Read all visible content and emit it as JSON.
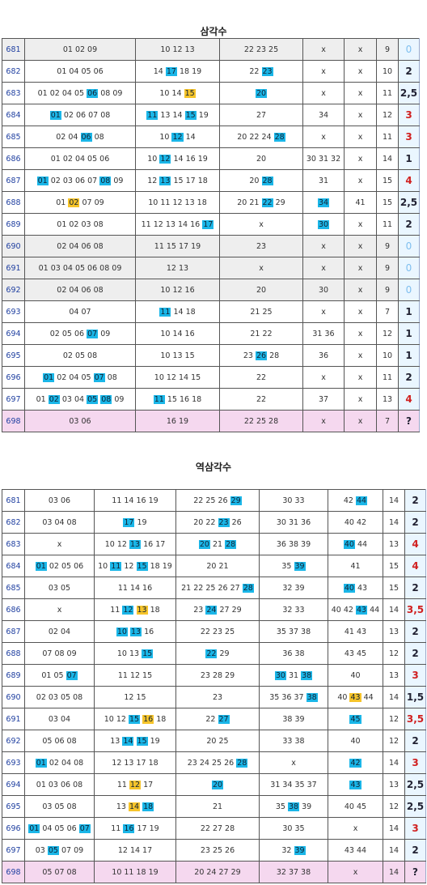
{
  "table1": {
    "title": "삼각수",
    "rows": [
      {
        "no": "681",
        "c": [
          "01 02 09",
          "10 12 13",
          "22 23 25",
          "x",
          "x",
          "9"
        ],
        "last": "0",
        "style": "gray",
        "hl": []
      },
      {
        "no": "682",
        "c": [
          "01 04 05 06",
          "14 17 18 19",
          "22 23",
          "x",
          "x",
          "10"
        ],
        "last": "2",
        "hl": [
          [
            1,
            "17",
            "b"
          ],
          [
            2,
            "23",
            "b"
          ]
        ]
      },
      {
        "no": "683",
        "c": [
          "01 02 04 05 06 08 09",
          "10 14 15",
          "20",
          "x",
          "x",
          "11"
        ],
        "last": "2,5",
        "hl": [
          [
            0,
            "06",
            "b"
          ],
          [
            1,
            "15",
            "y"
          ],
          [
            2,
            "20",
            "b"
          ]
        ]
      },
      {
        "no": "684",
        "c": [
          "01 02 06 07 08",
          "11 13 14 15 19",
          "27",
          "34",
          "x",
          "12"
        ],
        "last": "3",
        "red": true,
        "hl": [
          [
            0,
            "01",
            "b"
          ],
          [
            1,
            "11",
            "b"
          ],
          [
            1,
            "15",
            "b"
          ]
        ]
      },
      {
        "no": "685",
        "c": [
          "02 04 06 08",
          "10 12 14",
          "20 22 24 28",
          "x",
          "x",
          "11"
        ],
        "last": "3",
        "red": true,
        "hl": [
          [
            0,
            "06",
            "b"
          ],
          [
            1,
            "12",
            "b"
          ],
          [
            2,
            "28",
            "b"
          ]
        ]
      },
      {
        "no": "686",
        "c": [
          "01 02 04 05 06",
          "10 12 14 16 19",
          "20",
          "30 31 32",
          "x",
          "14"
        ],
        "last": "1",
        "hl": [
          [
            1,
            "12",
            "b"
          ]
        ]
      },
      {
        "no": "687",
        "c": [
          "01 02 03 06 07 08 09",
          "12 13 15 17 18",
          "20 28",
          "31",
          "x",
          "15"
        ],
        "last": "4",
        "red": true,
        "hl": [
          [
            0,
            "01",
            "b"
          ],
          [
            0,
            "08",
            "b"
          ],
          [
            1,
            "13",
            "b"
          ],
          [
            2,
            "28",
            "b"
          ]
        ]
      },
      {
        "no": "688",
        "c": [
          "01 02 07 09",
          "10 11 12 13 18",
          "20 21 22 29",
          "34",
          "41",
          "15"
        ],
        "last": "2,5",
        "hl": [
          [
            0,
            "02",
            "y"
          ],
          [
            2,
            "22",
            "b"
          ],
          [
            3,
            "34",
            "b"
          ]
        ]
      },
      {
        "no": "689",
        "c": [
          "01 02 03 08",
          "11 12 13 14 16 17",
          "x",
          "30",
          "x",
          "11"
        ],
        "last": "2",
        "hl": [
          [
            1,
            "17",
            "b"
          ],
          [
            3,
            "30",
            "b"
          ]
        ]
      },
      {
        "no": "690",
        "c": [
          "02 04 06 08",
          "11 15 17 19",
          "23",
          "x",
          "x",
          "9"
        ],
        "last": "0",
        "style": "gray",
        "hl": []
      },
      {
        "no": "691",
        "c": [
          "01 03 04 05 06 08 09",
          "12 13",
          "x",
          "x",
          "x",
          "9"
        ],
        "last": "0",
        "style": "gray",
        "hl": []
      },
      {
        "no": "692",
        "c": [
          "02 04 06 08",
          "10 12 16",
          "20",
          "30",
          "x",
          "9"
        ],
        "last": "0",
        "style": "gray",
        "hl": []
      },
      {
        "no": "693",
        "c": [
          "04 07",
          "11 14 18",
          "21 25",
          "x",
          "x",
          "7"
        ],
        "last": "1",
        "hl": [
          [
            1,
            "11",
            "b"
          ]
        ]
      },
      {
        "no": "694",
        "c": [
          "02 05 06 07 09",
          "10 14 16",
          "21 22",
          "31 36",
          "x",
          "12"
        ],
        "last": "1",
        "hl": [
          [
            0,
            "07",
            "b"
          ]
        ]
      },
      {
        "no": "695",
        "c": [
          "02 05 08",
          "10 13 15",
          "23 26 28",
          "36",
          "x",
          "10"
        ],
        "last": "1",
        "hl": [
          [
            2,
            "26",
            "b"
          ]
        ]
      },
      {
        "no": "696",
        "c": [
          "01 02 04 05 07 08",
          "10 12 14 15",
          "22",
          "x",
          "x",
          "11"
        ],
        "last": "2",
        "hl": [
          [
            0,
            "01",
            "b"
          ],
          [
            0,
            "07",
            "b"
          ]
        ]
      },
      {
        "no": "697",
        "c": [
          "01 02 03 04 05 08 09",
          "11 15 16 18",
          "22",
          "37",
          "x",
          "13"
        ],
        "last": "4",
        "red": true,
        "hl": [
          [
            0,
            "02",
            "b"
          ],
          [
            0,
            "05",
            "b"
          ],
          [
            0,
            "08",
            "b"
          ],
          [
            1,
            "11",
            "b"
          ]
        ]
      },
      {
        "no": "698",
        "c": [
          "03 06",
          "16 19",
          "22 25 28",
          "x",
          "x",
          "7"
        ],
        "last": "?",
        "style": "pink",
        "hl": []
      }
    ]
  },
  "table2": {
    "title": "역삼각수",
    "rows": [
      {
        "no": "681",
        "c": [
          "03 06",
          "11 14 16 19",
          "22 25 26 29",
          "30 33",
          "42 44",
          "14"
        ],
        "last": "2",
        "hl": [
          [
            2,
            "29",
            "b"
          ],
          [
            4,
            "44",
            "b"
          ]
        ]
      },
      {
        "no": "682",
        "c": [
          "03 04 08",
          "17 19",
          "20 22 23 26",
          "30 31 36",
          "40 42",
          "14"
        ],
        "last": "2",
        "hl": [
          [
            1,
            "17",
            "b"
          ],
          [
            2,
            "23",
            "b"
          ]
        ]
      },
      {
        "no": "683",
        "c": [
          "x",
          "10 12 13 16 17",
          "20 21 28",
          "36 38 39",
          "40 44",
          "13"
        ],
        "last": "4",
        "red": true,
        "hl": [
          [
            1,
            "13",
            "b"
          ],
          [
            2,
            "20",
            "b"
          ],
          [
            2,
            "28",
            "b"
          ],
          [
            4,
            "40",
            "b"
          ]
        ]
      },
      {
        "no": "684",
        "c": [
          "01 02 05 06",
          "10 11 12 15 18 19",
          "20 21",
          "35 39",
          "41",
          "15"
        ],
        "last": "4",
        "red": true,
        "hl": [
          [
            0,
            "01",
            "b"
          ],
          [
            1,
            "11",
            "b"
          ],
          [
            1,
            "15",
            "b"
          ],
          [
            3,
            "39",
            "b"
          ]
        ]
      },
      {
        "no": "685",
        "c": [
          "03 05",
          "11 14 16",
          "21 22 25 26 27 28",
          "32 39",
          "40 43",
          "15"
        ],
        "last": "2",
        "hl": [
          [
            2,
            "28",
            "b"
          ],
          [
            4,
            "40",
            "b"
          ]
        ]
      },
      {
        "no": "686",
        "c": [
          "x",
          "11 12 13 18",
          "23 24 27 29",
          "32 33",
          "40 42 43 44",
          "14"
        ],
        "last": "3,5",
        "red": true,
        "hl": [
          [
            1,
            "12",
            "b"
          ],
          [
            1,
            "13",
            "y"
          ],
          [
            2,
            "24",
            "b"
          ],
          [
            4,
            "43",
            "b"
          ]
        ]
      },
      {
        "no": "687",
        "c": [
          "02 04",
          "10 13 16",
          "22 23 25",
          "35 37 38",
          "41 43",
          "13"
        ],
        "last": "2",
        "hl": [
          [
            1,
            "10",
            "b"
          ],
          [
            1,
            "13",
            "b"
          ]
        ]
      },
      {
        "no": "688",
        "c": [
          "07 08 09",
          "10 13 15",
          "22 29",
          "36 38",
          "43 45",
          "12"
        ],
        "last": "2",
        "hl": [
          [
            1,
            "15",
            "b"
          ],
          [
            2,
            "22",
            "b"
          ]
        ]
      },
      {
        "no": "689",
        "c": [
          "01 05 07",
          "11 12 15",
          "23 28 29",
          "30 31 38",
          "40",
          "13"
        ],
        "last": "3",
        "red": true,
        "hl": [
          [
            0,
            "07",
            "b"
          ],
          [
            3,
            "30",
            "b"
          ],
          [
            3,
            "38",
            "b"
          ]
        ]
      },
      {
        "no": "690",
        "c": [
          "02 03 05 08",
          "12 15",
          "23",
          "35 36 37 38",
          "40 43 44",
          "14"
        ],
        "last": "1,5",
        "hl": [
          [
            3,
            "38",
            "b"
          ],
          [
            4,
            "43",
            "y"
          ]
        ]
      },
      {
        "no": "691",
        "c": [
          "03 04",
          "10 12 15 16 18",
          "22 27",
          "38 39",
          "45",
          "12"
        ],
        "last": "3,5",
        "red": true,
        "hl": [
          [
            1,
            "15",
            "b"
          ],
          [
            1,
            "16",
            "y"
          ],
          [
            2,
            "27",
            "b"
          ],
          [
            4,
            "45",
            "b"
          ]
        ]
      },
      {
        "no": "692",
        "c": [
          "05 06 08",
          "13 14 15 19",
          "20 25",
          "33 38",
          "40",
          "12"
        ],
        "last": "2",
        "hl": [
          [
            1,
            "14",
            "b"
          ],
          [
            1,
            "15",
            "b"
          ]
        ]
      },
      {
        "no": "693",
        "c": [
          "01 02 04 08",
          "12 13 17 18",
          "23 24 25 26 28",
          "x",
          "42",
          "14"
        ],
        "last": "3",
        "red": true,
        "hl": [
          [
            0,
            "01",
            "b"
          ],
          [
            2,
            "28",
            "b"
          ],
          [
            4,
            "42",
            "b"
          ]
        ]
      },
      {
        "no": "694",
        "c": [
          "01 03 06 08",
          "11 12 17",
          "20",
          "31 34 35 37",
          "43",
          "13"
        ],
        "last": "2,5",
        "hl": [
          [
            1,
            "12",
            "y"
          ],
          [
            2,
            "20",
            "b"
          ],
          [
            4,
            "43",
            "b"
          ]
        ]
      },
      {
        "no": "695",
        "c": [
          "03 05 08",
          "13 14 18",
          "21",
          "35 38 39",
          "40 45",
          "12"
        ],
        "last": "2,5",
        "hl": [
          [
            1,
            "14",
            "y"
          ],
          [
            1,
            "18",
            "b"
          ],
          [
            3,
            "38",
            "b"
          ]
        ]
      },
      {
        "no": "696",
        "c": [
          "01 04 05 06 07",
          "11 16 17 19",
          "22 27 28",
          "30 35",
          "x",
          "14"
        ],
        "last": "3",
        "red": true,
        "hl": [
          [
            0,
            "01",
            "b"
          ],
          [
            0,
            "07",
            "b"
          ],
          [
            1,
            "16",
            "b"
          ]
        ]
      },
      {
        "no": "697",
        "c": [
          "03 05 07 09",
          "12 14 17",
          "23 25 26",
          "32 39",
          "43 44",
          "14"
        ],
        "last": "2",
        "hl": [
          [
            0,
            "05",
            "b"
          ],
          [
            3,
            "39",
            "b"
          ]
        ]
      },
      {
        "no": "698",
        "c": [
          "05 07 08",
          "10 11 18 19",
          "20 24 27 29",
          "32 37 38",
          "x",
          "14"
        ],
        "last": "?",
        "style": "pink",
        "hl": []
      }
    ]
  }
}
